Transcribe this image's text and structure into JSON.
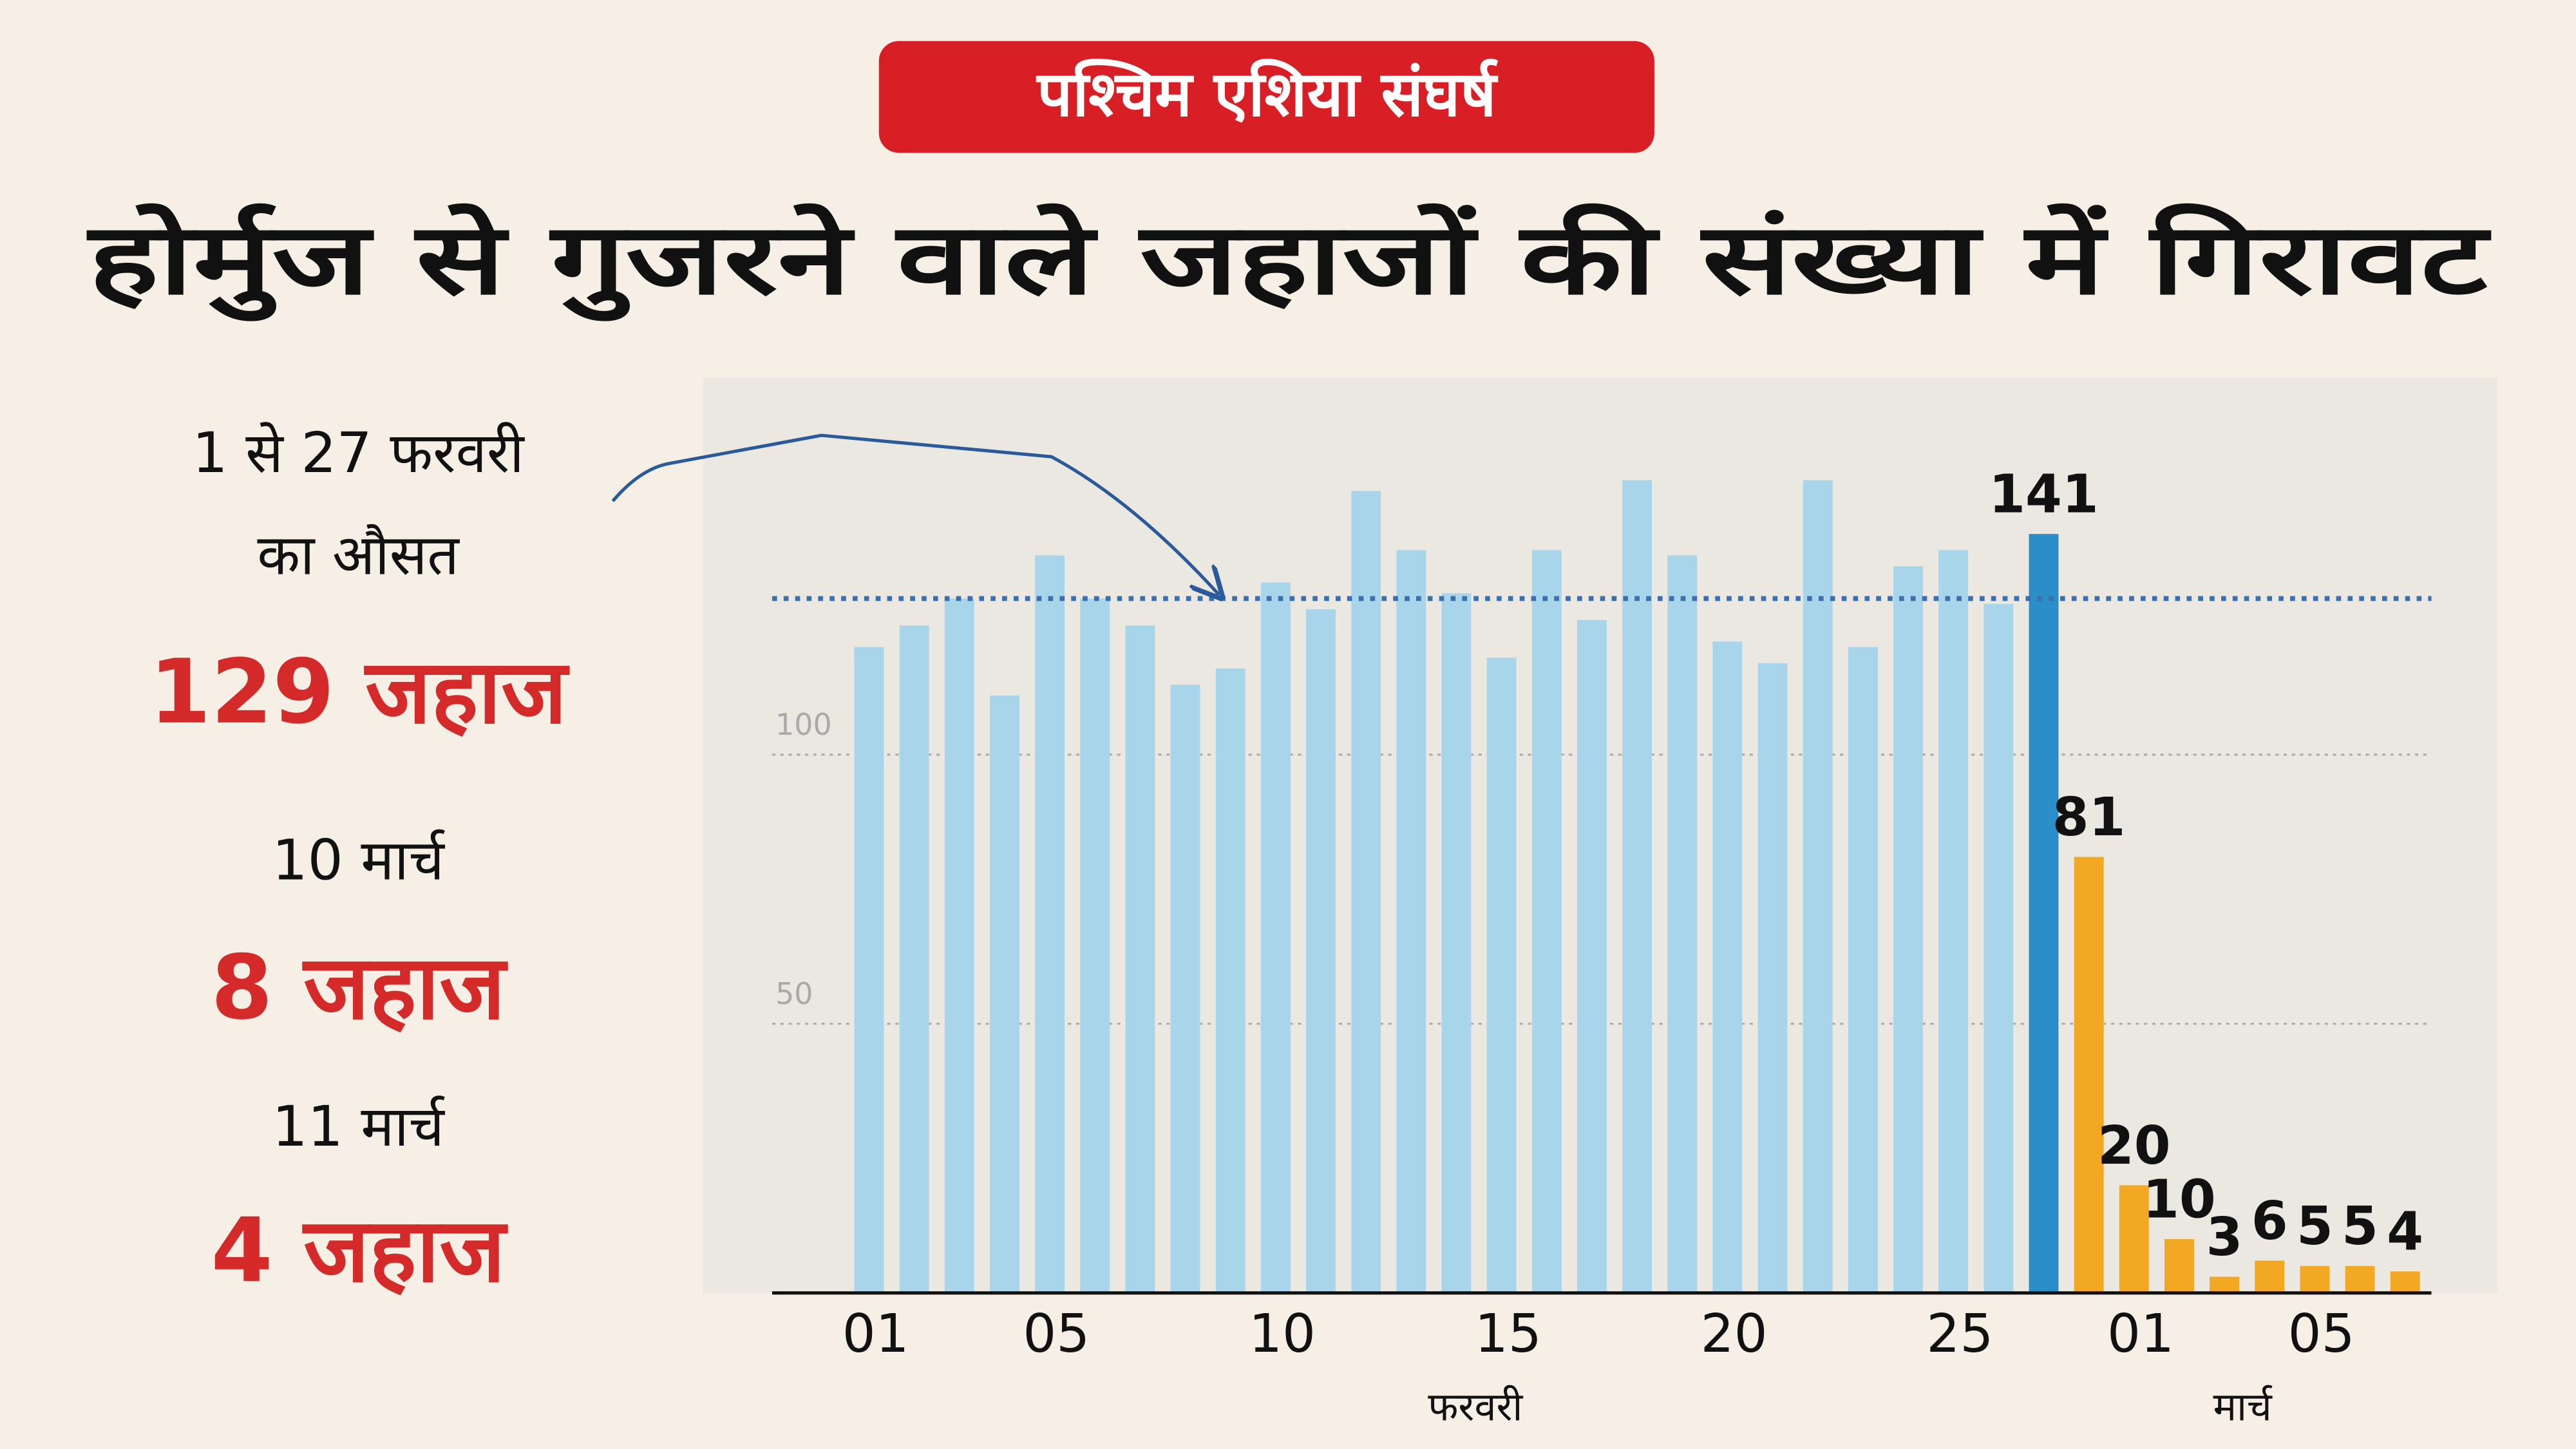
{
  "header": {
    "badge": "पश्चिम एशिया संघर्ष",
    "title": "होर्मुज से गुजरने वाले जहाजों की संख्या में गिरावट"
  },
  "sidebar": {
    "average_period": "1 से 27 फरवरी",
    "average_caption": "का औसत",
    "average_value": "129 जहाज",
    "date_1": "10 मार्च",
    "value_1": "8 जहाज",
    "date_2": "11 मार्च",
    "value_2": "4 जहाज"
  },
  "chart_data": {
    "type": "bar",
    "categories": [
      "01",
      null,
      null,
      null,
      "05",
      null,
      null,
      null,
      null,
      "10",
      null,
      null,
      null,
      null,
      "15",
      null,
      null,
      null,
      null,
      "20",
      null,
      null,
      null,
      null,
      "25",
      null,
      null,
      null,
      "01",
      null,
      null,
      null,
      "05",
      null,
      null
    ],
    "month_labels": [
      "फरवरी",
      "मार्च"
    ],
    "series": [
      {
        "color": "#a9d5eb",
        "show_labels": false,
        "values": [
          120,
          124,
          129,
          111,
          137,
          129,
          124,
          113,
          116,
          132,
          127,
          149,
          138,
          130,
          118,
          138,
          125,
          151,
          137,
          121,
          117,
          151,
          120,
          135,
          138,
          128,
          null,
          null,
          null,
          null,
          null,
          null,
          null,
          null,
          null
        ]
      },
      {
        "color": "#2a8fc8",
        "show_labels": true,
        "values": [
          null,
          null,
          null,
          null,
          null,
          null,
          null,
          null,
          null,
          null,
          null,
          null,
          null,
          null,
          null,
          null,
          null,
          null,
          null,
          null,
          null,
          null,
          null,
          null,
          null,
          null,
          141,
          null,
          null,
          null,
          null,
          null,
          null,
          null,
          null
        ]
      },
      {
        "color": "#f2a823",
        "show_labels": true,
        "values": [
          null,
          null,
          null,
          null,
          null,
          null,
          null,
          null,
          null,
          null,
          null,
          null,
          null,
          null,
          null,
          null,
          null,
          null,
          null,
          null,
          null,
          null,
          null,
          null,
          null,
          null,
          null,
          81,
          20,
          10,
          3,
          6,
          5,
          5,
          4
        ]
      }
    ],
    "average_line": 129,
    "average_color": "#3b6fae",
    "ylim": [
      0,
      170
    ],
    "yticks": [
      50,
      100
    ],
    "grid": true
  }
}
